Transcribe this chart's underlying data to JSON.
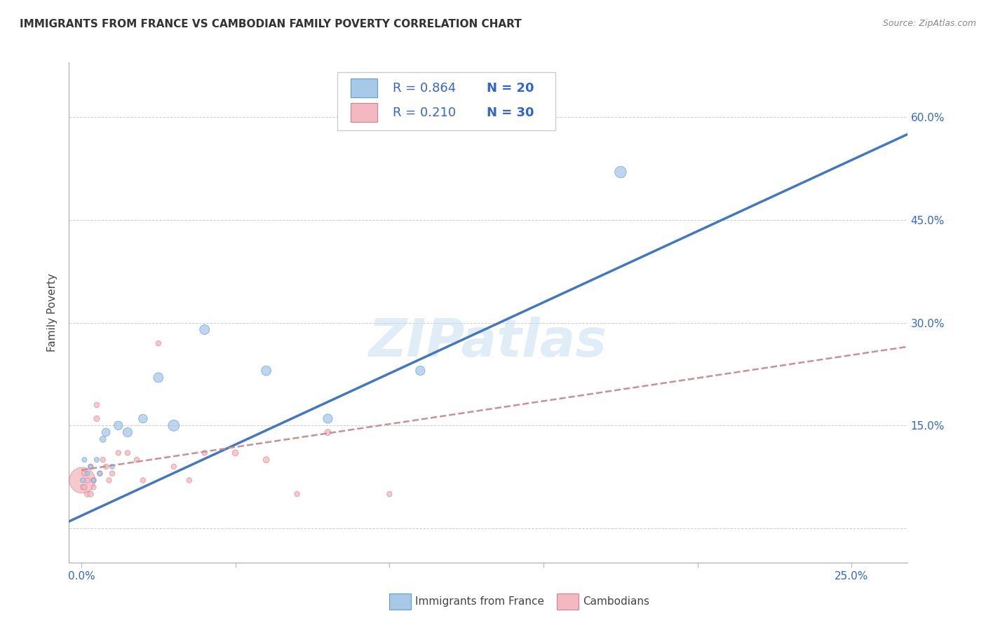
{
  "title": "IMMIGRANTS FROM FRANCE VS CAMBODIAN FAMILY POVERTY CORRELATION CHART",
  "source": "Source: ZipAtlas.com",
  "xlabel_label": "Immigrants from France",
  "ylabel_label": "Family Poverty",
  "x_ticks": [
    0.0,
    0.05,
    0.1,
    0.15,
    0.2,
    0.25
  ],
  "x_tick_labels": [
    "0.0%",
    "",
    "",
    "",
    "",
    "25.0%"
  ],
  "y_ticks": [
    0.0,
    0.15,
    0.3,
    0.45,
    0.6
  ],
  "y_tick_labels": [
    "",
    "15.0%",
    "30.0%",
    "45.0%",
    "60.0%"
  ],
  "xlim": [
    -0.004,
    0.268
  ],
  "ylim": [
    -0.05,
    0.68
  ],
  "blue_fill": "#a8c8e8",
  "blue_edge": "#5a9fd4",
  "blue_line": "#4477bb",
  "pink_fill": "#f4b8c0",
  "pink_edge": "#d88090",
  "pink_line": "#d08090",
  "pink_line_dash": "#c89098",
  "text_color": "#3366cc",
  "legend_r_color": "#222222",
  "watermark_color": "#cce0f0",
  "legend_blue_r": "R = 0.864",
  "legend_blue_n": "N = 20",
  "legend_pink_r": "R = 0.210",
  "legend_pink_n": "N = 30",
  "watermark": "ZIPatlas",
  "blue_scatter_x": [
    0.0005,
    0.001,
    0.002,
    0.003,
    0.004,
    0.005,
    0.006,
    0.007,
    0.008,
    0.01,
    0.012,
    0.015,
    0.02,
    0.025,
    0.03,
    0.04,
    0.06,
    0.08,
    0.11,
    0.175
  ],
  "blue_scatter_y": [
    0.07,
    0.1,
    0.08,
    0.09,
    0.07,
    0.1,
    0.08,
    0.13,
    0.14,
    0.09,
    0.15,
    0.14,
    0.16,
    0.22,
    0.15,
    0.29,
    0.23,
    0.16,
    0.23,
    0.52
  ],
  "blue_scatter_sizes": [
    25,
    25,
    20,
    20,
    20,
    25,
    25,
    40,
    70,
    25,
    80,
    90,
    80,
    100,
    130,
    100,
    100,
    90,
    90,
    140
  ],
  "pink_scatter_x": [
    0.0003,
    0.0005,
    0.001,
    0.001,
    0.002,
    0.002,
    0.003,
    0.003,
    0.004,
    0.004,
    0.005,
    0.005,
    0.006,
    0.007,
    0.008,
    0.009,
    0.01,
    0.012,
    0.015,
    0.018,
    0.02,
    0.025,
    0.03,
    0.035,
    0.04,
    0.05,
    0.06,
    0.07,
    0.08,
    0.1
  ],
  "pink_scatter_y": [
    0.07,
    0.06,
    0.06,
    0.08,
    0.05,
    0.07,
    0.05,
    0.09,
    0.07,
    0.06,
    0.16,
    0.18,
    0.08,
    0.1,
    0.09,
    0.07,
    0.08,
    0.11,
    0.11,
    0.1,
    0.07,
    0.27,
    0.09,
    0.07,
    0.11,
    0.11,
    0.1,
    0.05,
    0.14,
    0.05
  ],
  "pink_scatter_sizes": [
    700,
    30,
    30,
    30,
    35,
    30,
    35,
    30,
    30,
    25,
    35,
    30,
    30,
    28,
    28,
    28,
    28,
    28,
    28,
    28,
    28,
    28,
    28,
    28,
    28,
    40,
    40,
    28,
    40,
    28
  ],
  "blue_line_x": [
    -0.004,
    0.268
  ],
  "blue_line_y": [
    0.01,
    0.575
  ],
  "pink_line_x": [
    0.0,
    0.268
  ],
  "pink_line_y": [
    0.085,
    0.265
  ]
}
